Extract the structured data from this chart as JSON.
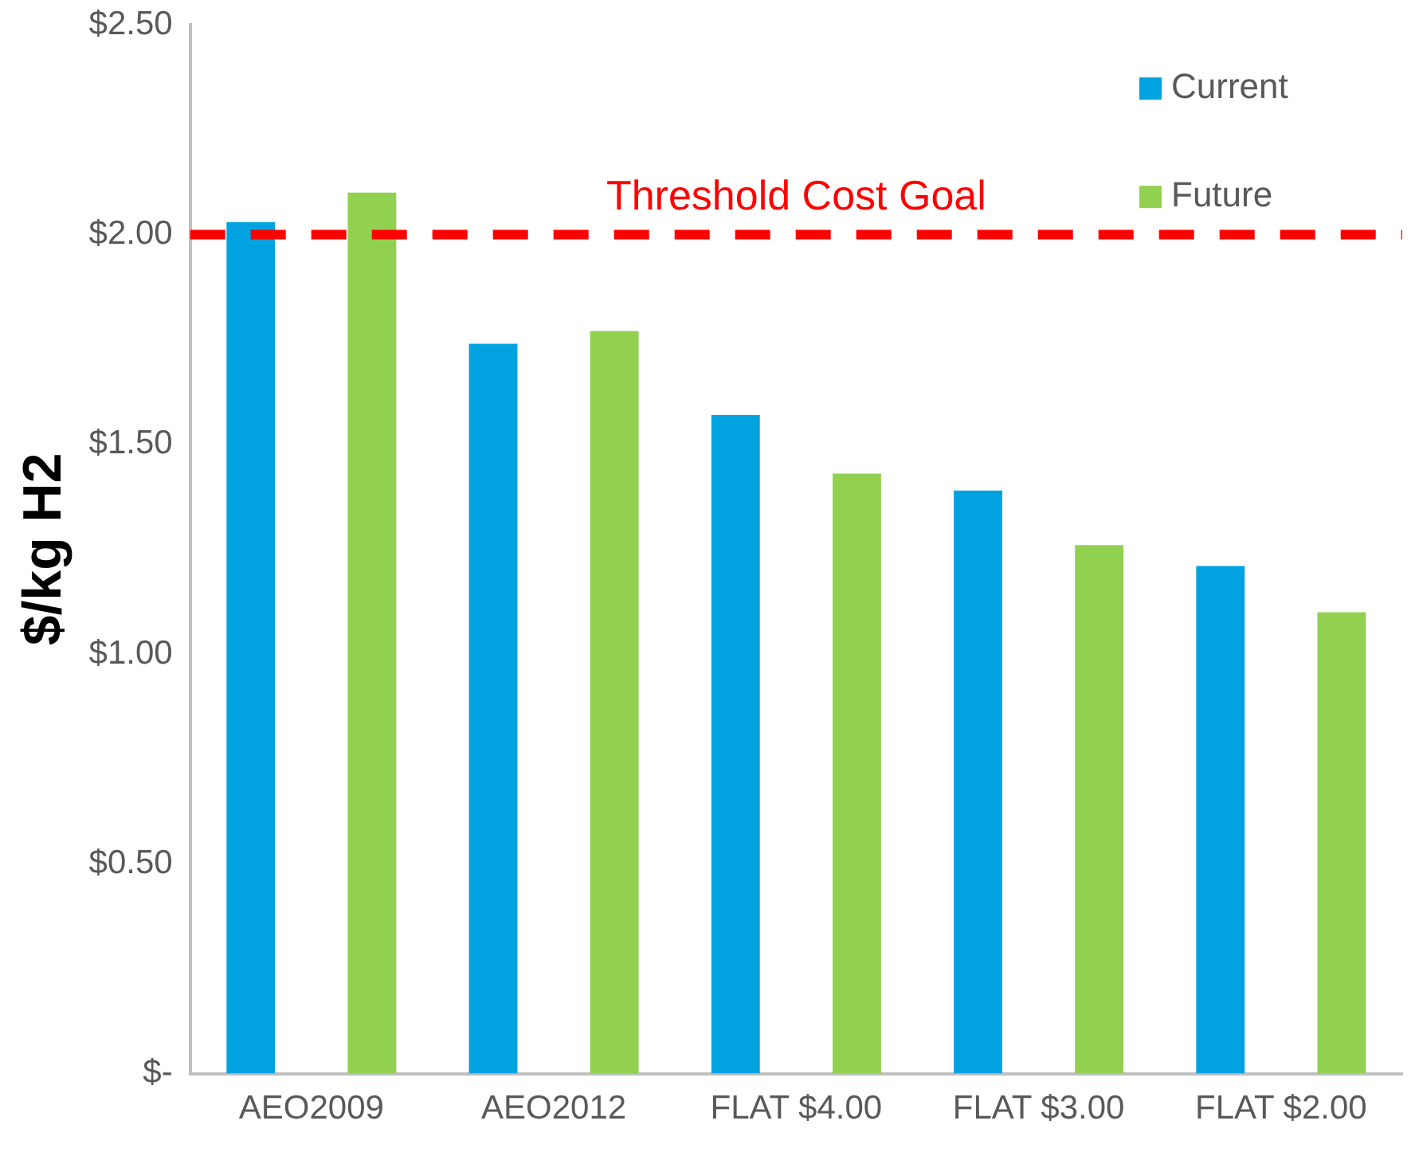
{
  "chart_data": {
    "type": "bar",
    "ylabel": "$/kg H2",
    "categories": [
      "AEO2009",
      "AEO2012",
      "FLAT $4.00",
      "FLAT $3.00",
      "FLAT $2.00"
    ],
    "series": [
      {
        "name": "Current",
        "color": "#00a2e0",
        "values": [
          2.03,
          1.74,
          1.57,
          1.39,
          1.21
        ]
      },
      {
        "name": "Future",
        "color": "#92d050",
        "values": [
          2.1,
          1.77,
          1.43,
          1.26,
          1.1
        ]
      }
    ],
    "ylim": [
      0,
      2.5
    ],
    "yticks": [
      {
        "value": 0,
        "label": "$-"
      },
      {
        "value": 0.5,
        "label": "$0.50"
      },
      {
        "value": 1,
        "label": "$1.00"
      },
      {
        "value": 1.5,
        "label": "$1.50"
      },
      {
        "value": 2,
        "label": "$2.00"
      },
      {
        "value": 2.5,
        "label": "$2.50"
      }
    ],
    "ref_lines": [
      {
        "axis": "y",
        "value": 2,
        "label": "Threshold Cost Goal",
        "color": "#ff0000",
        "line_style": "dashed"
      }
    ],
    "grid": false,
    "legend": "top right"
  }
}
